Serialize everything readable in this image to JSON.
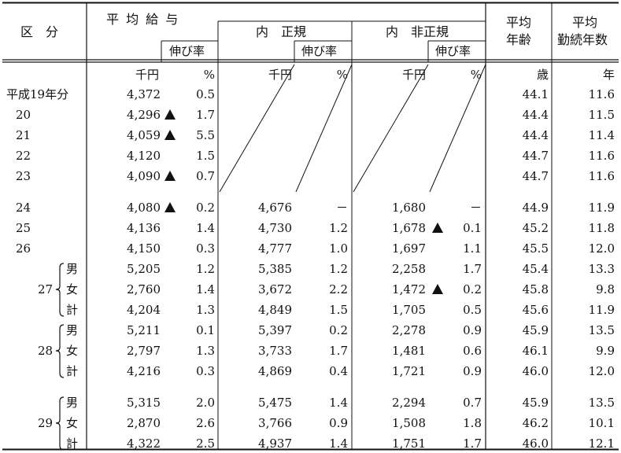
{
  "headers": {
    "category": "区　分",
    "avg_salary": "平 均 給 与",
    "growth": "伸び率",
    "regular": "内　正規",
    "nonregular": "内　非正規",
    "avg_age_l1": "平均",
    "avg_age_l2": "年齢",
    "avg_years_l1": "平均",
    "avg_years_l2": "勤続年数"
  },
  "units": {
    "salary": "千円",
    "pct": "%",
    "reg": "千円",
    "reg_pct": "%",
    "non": "千円",
    "non_pct": "%",
    "age": "歳",
    "years": "年"
  },
  "gender": {
    "male": "男",
    "female": "女",
    "total": "計"
  },
  "rows": [
    {
      "label": "平成19年分",
      "salary": "4,372",
      "g": "0.5",
      "gn": false,
      "reg": "",
      "rg": "",
      "rgn": false,
      "non": "",
      "ng": "",
      "ngn": false,
      "age": "44.1",
      "yrs": "11.6"
    },
    {
      "label": "20",
      "salary": "4,296",
      "g": "1.7",
      "gn": true,
      "reg": "",
      "rg": "",
      "rgn": false,
      "non": "",
      "ng": "",
      "ngn": false,
      "age": "44.4",
      "yrs": "11.5"
    },
    {
      "label": "21",
      "salary": "4,059",
      "g": "5.5",
      "gn": true,
      "reg": "",
      "rg": "",
      "rgn": false,
      "non": "",
      "ng": "",
      "ngn": false,
      "age": "44.4",
      "yrs": "11.4"
    },
    {
      "label": "22",
      "salary": "4,120",
      "g": "1.5",
      "gn": false,
      "reg": "",
      "rg": "",
      "rgn": false,
      "non": "",
      "ng": "",
      "ngn": false,
      "age": "44.7",
      "yrs": "11.6"
    },
    {
      "label": "23",
      "salary": "4,090",
      "g": "0.7",
      "gn": true,
      "reg": "",
      "rg": "",
      "rgn": false,
      "non": "",
      "ng": "",
      "ngn": false,
      "age": "44.7",
      "yrs": "11.6"
    },
    {
      "label": "24",
      "salary": "4,080",
      "g": "0.2",
      "gn": true,
      "reg": "4,676",
      "rg": "－",
      "rgn": false,
      "non": "1,680",
      "ng": "－",
      "ngn": false,
      "age": "44.9",
      "yrs": "11.9"
    },
    {
      "label": "25",
      "salary": "4,136",
      "g": "1.4",
      "gn": false,
      "reg": "4,730",
      "rg": "1.2",
      "rgn": false,
      "non": "1,678",
      "ng": "0.1",
      "ngn": true,
      "age": "45.2",
      "yrs": "11.8"
    },
    {
      "label": "26",
      "salary": "4,150",
      "g": "0.3",
      "gn": false,
      "reg": "4,777",
      "rg": "1.0",
      "rgn": false,
      "non": "1,697",
      "ng": "1.1",
      "ngn": false,
      "age": "45.5",
      "yrs": "12.0"
    },
    {
      "label": "",
      "salary": "5,205",
      "g": "1.2",
      "gn": false,
      "reg": "5,385",
      "rg": "1.2",
      "rgn": false,
      "non": "2,258",
      "ng": "1.7",
      "ngn": false,
      "age": "45.4",
      "yrs": "13.3"
    },
    {
      "label": "",
      "salary": "2,760",
      "g": "1.4",
      "gn": false,
      "reg": "3,672",
      "rg": "2.2",
      "rgn": false,
      "non": "1,472",
      "ng": "0.2",
      "ngn": true,
      "age": "45.8",
      "yrs": "9.8"
    },
    {
      "label": "",
      "salary": "4,204",
      "g": "1.3",
      "gn": false,
      "reg": "4,849",
      "rg": "1.5",
      "rgn": false,
      "non": "1,705",
      "ng": "0.5",
      "ngn": false,
      "age": "45.6",
      "yrs": "11.9"
    },
    {
      "label": "",
      "salary": "5,211",
      "g": "0.1",
      "gn": false,
      "reg": "5,397",
      "rg": "0.2",
      "rgn": false,
      "non": "2,278",
      "ng": "0.9",
      "ngn": false,
      "age": "45.9",
      "yrs": "13.5"
    },
    {
      "label": "",
      "salary": "2,797",
      "g": "1.3",
      "gn": false,
      "reg": "3,733",
      "rg": "1.7",
      "rgn": false,
      "non": "1,481",
      "ng": "0.6",
      "ngn": false,
      "age": "46.1",
      "yrs": "9.9"
    },
    {
      "label": "",
      "salary": "4,216",
      "g": "0.3",
      "gn": false,
      "reg": "4,869",
      "rg": "0.4",
      "rgn": false,
      "non": "1,721",
      "ng": "0.9",
      "ngn": false,
      "age": "46.0",
      "yrs": "12.0"
    },
    {
      "label": "",
      "salary": "5,315",
      "g": "2.0",
      "gn": false,
      "reg": "5,475",
      "rg": "1.4",
      "rgn": false,
      "non": "2,294",
      "ng": "0.7",
      "ngn": false,
      "age": "45.9",
      "yrs": "13.5"
    },
    {
      "label": "",
      "salary": "2,870",
      "g": "2.6",
      "gn": false,
      "reg": "3,766",
      "rg": "0.9",
      "rgn": false,
      "non": "1,508",
      "ng": "1.8",
      "ngn": false,
      "age": "46.2",
      "yrs": "10.1"
    },
    {
      "label": "",
      "salary": "4,322",
      "g": "2.5",
      "gn": false,
      "reg": "4,937",
      "rg": "1.4",
      "rgn": false,
      "non": "1,751",
      "ng": "1.7",
      "ngn": false,
      "age": "46.0",
      "yrs": "12.1"
    }
  ],
  "groups": [
    {
      "year": "27"
    },
    {
      "year": "28"
    },
    {
      "year": "29"
    }
  ]
}
